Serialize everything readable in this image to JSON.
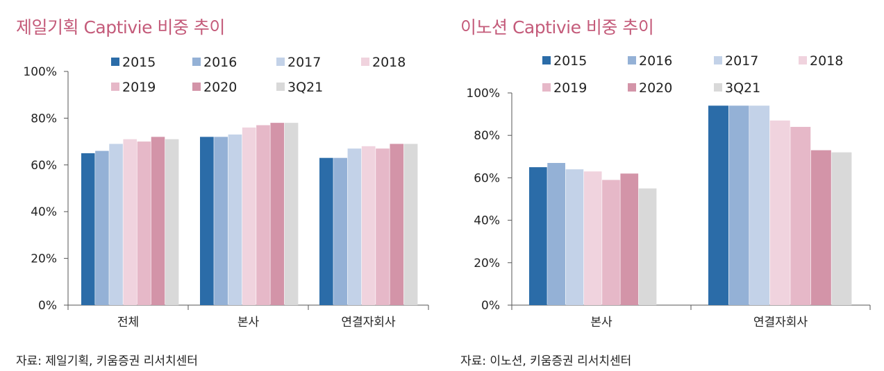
{
  "colors": {
    "title": "#c45b7a",
    "series": [
      "#2b6ca8",
      "#94b1d6",
      "#c3d2e8",
      "#f0d3de",
      "#e6b8c8",
      "#d394a8",
      "#d9d9d9"
    ]
  },
  "left": {
    "title": "제일기획 Captivie 비중 추이",
    "source": "자료: 제일기획, 키움증권 리서치센터"
  },
  "right": {
    "title": "이노션 Captivie 비중 추이",
    "source": "자료: 이노션, 키움증권 리서치센터"
  },
  "chart_data": [
    {
      "type": "bar",
      "title": "제일기획 Captivie 비중 추이",
      "categories": [
        "전체",
        "본사",
        "연결자회사"
      ],
      "y_ticks": [
        "0%",
        "20%",
        "40%",
        "60%",
        "80%",
        "100%"
      ],
      "ylim": [
        0,
        100
      ],
      "legend_position": "top",
      "series": [
        {
          "name": "2015",
          "values": [
            65,
            72,
            63
          ]
        },
        {
          "name": "2016",
          "values": [
            66,
            72,
            63
          ]
        },
        {
          "name": "2017",
          "values": [
            69,
            73,
            67
          ]
        },
        {
          "name": "2018",
          "values": [
            71,
            76,
            68
          ]
        },
        {
          "name": "2019",
          "values": [
            70,
            77,
            67
          ]
        },
        {
          "name": "2020",
          "values": [
            72,
            78,
            69
          ]
        },
        {
          "name": "3Q21",
          "values": [
            71,
            78,
            69
          ]
        }
      ]
    },
    {
      "type": "bar",
      "title": "이노션 Captivie 비중 추이",
      "categories": [
        "본사",
        "연결자회사"
      ],
      "y_ticks": [
        "0%",
        "20%",
        "40%",
        "60%",
        "80%",
        "100%"
      ],
      "ylim": [
        0,
        100
      ],
      "legend_position": "top",
      "series": [
        {
          "name": "2015",
          "values": [
            65,
            94
          ]
        },
        {
          "name": "2016",
          "values": [
            67,
            94
          ]
        },
        {
          "name": "2017",
          "values": [
            64,
            94
          ]
        },
        {
          "name": "2018",
          "values": [
            63,
            87
          ]
        },
        {
          "name": "2019",
          "values": [
            59,
            84
          ]
        },
        {
          "name": "2020",
          "values": [
            62,
            73
          ]
        },
        {
          "name": "3Q21",
          "values": [
            55,
            72
          ]
        }
      ]
    }
  ]
}
